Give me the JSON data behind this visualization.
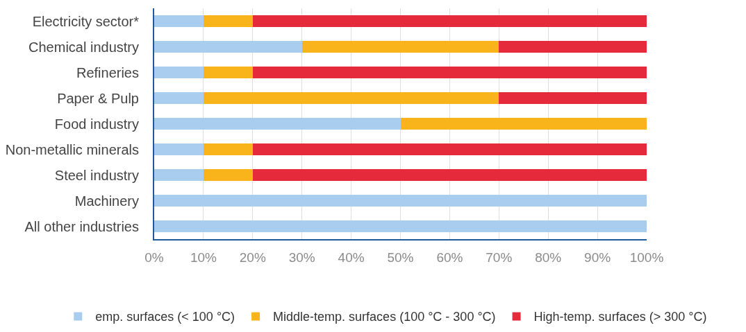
{
  "chart_data": {
    "type": "bar",
    "orientation": "horizontal",
    "stacked": true,
    "categories": [
      "Electricity sector*",
      "Chemical industry",
      "Refineries",
      "Paper & Pulp",
      "Food industry",
      "Non-metallic minerals",
      "Steel industry",
      "Machinery",
      "All other industries"
    ],
    "series": [
      {
        "name": "emp. surfaces (< 100 °C)",
        "color": "#a8cdee",
        "values": [
          10,
          30,
          10,
          10,
          50,
          10,
          10,
          100,
          100
        ]
      },
      {
        "name": "Middle-temp. surfaces (100 °C - 300 °C)",
        "color": "#f9b31b",
        "values": [
          10,
          40,
          10,
          60,
          50,
          10,
          10,
          0,
          0
        ]
      },
      {
        "name": "High-temp. surfaces (> 300 °C)",
        "color": "#e52a3c",
        "values": [
          80,
          30,
          80,
          30,
          0,
          80,
          80,
          0,
          0
        ]
      }
    ],
    "xlim": [
      0,
      100
    ],
    "xticks": [
      {
        "value": 0,
        "label": "0%"
      },
      {
        "value": 10,
        "label": "10%"
      },
      {
        "value": 20,
        "label": "20%"
      },
      {
        "value": 30,
        "label": "30%"
      },
      {
        "value": 40,
        "label": "40%"
      },
      {
        "value": 50,
        "label": "50%"
      },
      {
        "value": 60,
        "label": "60%"
      },
      {
        "value": 70,
        "label": "70%"
      },
      {
        "value": 80,
        "label": "80%"
      },
      {
        "value": 90,
        "label": "90%"
      },
      {
        "value": 100,
        "label": "100%"
      }
    ],
    "grid": "x",
    "legend": "bottom"
  }
}
